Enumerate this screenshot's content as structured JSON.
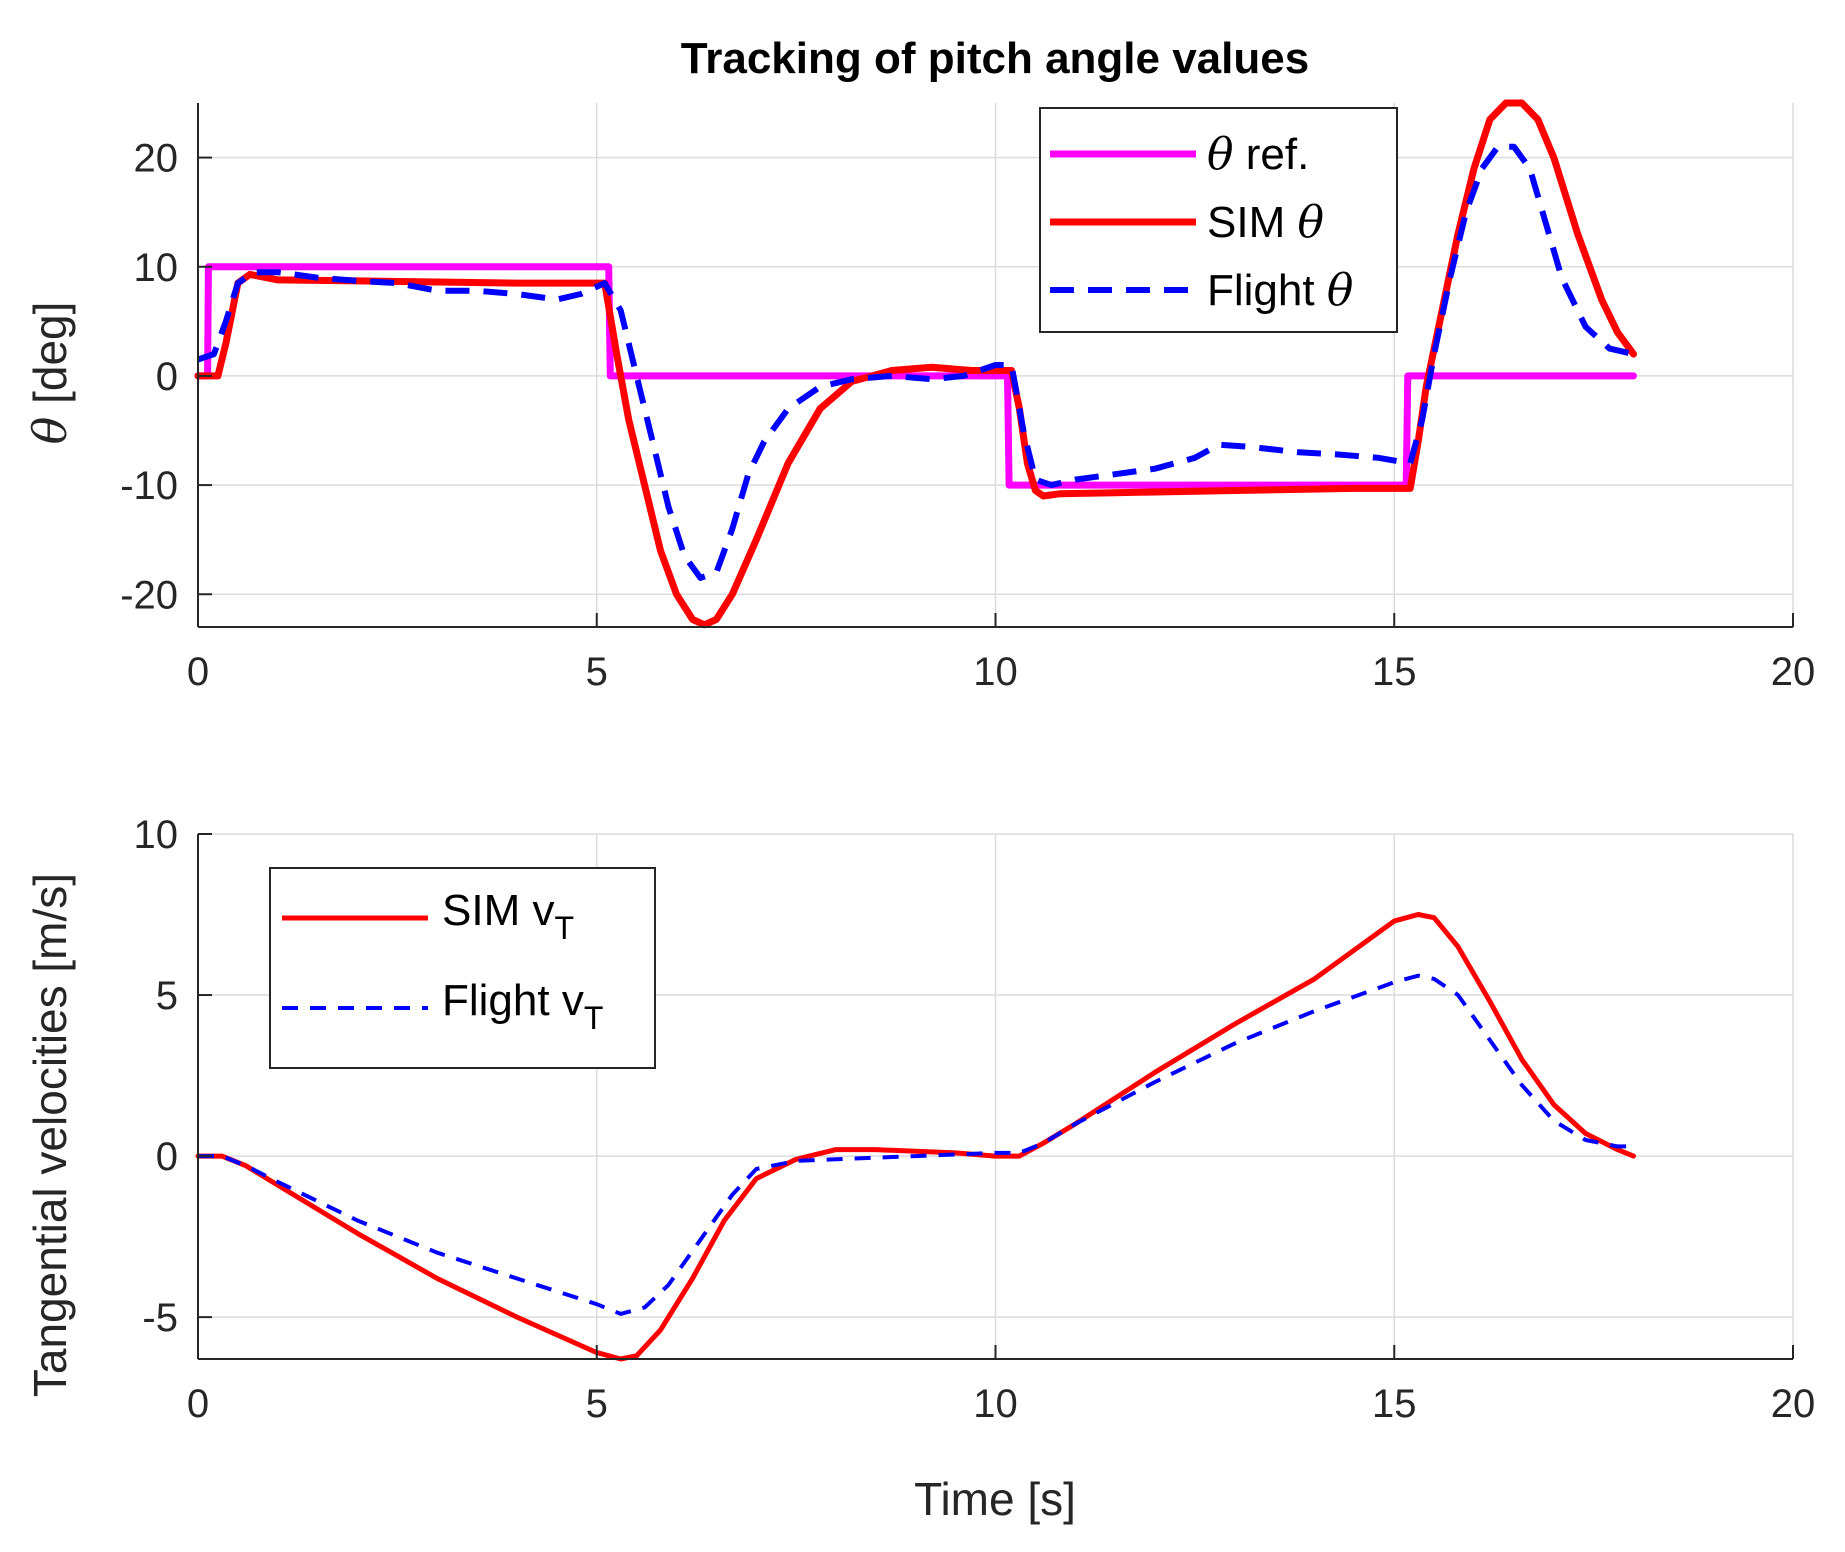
{
  "chart_data": [
    {
      "type": "line",
      "title": "Tracking of pitch angle values",
      "xlabel": "",
      "ylabel": "θ [deg]",
      "ylabel_symbol": "θ",
      "ylabel_unit": "[deg]",
      "xlim": [
        0,
        20
      ],
      "ylim": [
        -23,
        25
      ],
      "xticks": [
        0,
        5,
        10,
        15,
        20
      ],
      "yticks": [
        -20,
        -10,
        0,
        10,
        20
      ],
      "grid": true,
      "legend_position": "top-right",
      "series": [
        {
          "name": "θ ref.",
          "label_symbol": "θ",
          "label_text": "ref.",
          "color": "#ff00ff",
          "style": "solid",
          "x": [
            0,
            0.12,
            0.13,
            5.15,
            5.17,
            10.15,
            10.17,
            15.15,
            15.17,
            18
          ],
          "y": [
            0,
            0,
            10,
            10,
            0,
            0,
            -10,
            -10,
            0,
            0
          ]
        },
        {
          "name": "SIM θ",
          "label_text": "SIM",
          "label_symbol": "θ",
          "color": "#ff0000",
          "style": "solid",
          "x": [
            0,
            0.25,
            0.35,
            0.5,
            0.65,
            1,
            2,
            3,
            4,
            5.1,
            5.25,
            5.4,
            5.6,
            5.8,
            6.0,
            6.2,
            6.35,
            6.5,
            6.7,
            7.0,
            7.4,
            7.8,
            8.2,
            8.7,
            9.2,
            9.7,
            10.2,
            10.3,
            10.4,
            10.5,
            10.6,
            10.8,
            11.5,
            13,
            14.5,
            15.2,
            15.3,
            15.4,
            15.6,
            15.8,
            16.0,
            16.2,
            16.4,
            16.6,
            16.8,
            17.0,
            17.3,
            17.6,
            17.8,
            18.0
          ],
          "y": [
            0,
            0,
            3,
            8.5,
            9.3,
            8.8,
            8.7,
            8.6,
            8.5,
            8.5,
            2,
            -4,
            -10,
            -16,
            -20,
            -22.3,
            -22.8,
            -22.3,
            -20,
            -15,
            -8,
            -3,
            -0.5,
            0.5,
            0.8,
            0.5,
            0.5,
            -3,
            -8,
            -10.5,
            -11,
            -10.8,
            -10.7,
            -10.5,
            -10.3,
            -10.3,
            -6,
            -1,
            6,
            13,
            19,
            23.5,
            25,
            25,
            23.5,
            20,
            13,
            7,
            4,
            2
          ]
        },
        {
          "name": "Flight θ",
          "label_text": "Flight",
          "label_symbol": "θ",
          "color": "#0000ff",
          "style": "dashed",
          "x": [
            0,
            0.2,
            0.35,
            0.5,
            0.7,
            1,
            1.5,
            2,
            2.5,
            3,
            3.5,
            4,
            4.5,
            4.8,
            5.1,
            5.3,
            5.5,
            5.7,
            5.9,
            6.1,
            6.3,
            6.5,
            6.7,
            6.9,
            7.1,
            7.4,
            7.8,
            8.2,
            8.7,
            9.2,
            9.6,
            10.0,
            10.2,
            10.35,
            10.5,
            10.7,
            11,
            11.5,
            12,
            12.5,
            12.8,
            13.2,
            13.8,
            14.3,
            14.8,
            15.2,
            15.35,
            15.5,
            15.7,
            15.9,
            16.1,
            16.3,
            16.5,
            16.7,
            16.9,
            17.1,
            17.4,
            17.7,
            18.0
          ],
          "y": [
            1.5,
            2,
            5,
            8.5,
            9.5,
            9.5,
            9,
            8.7,
            8.5,
            7.8,
            7.8,
            7.5,
            7,
            7.5,
            8.5,
            6,
            0,
            -6,
            -12,
            -16.5,
            -18.5,
            -18,
            -14,
            -9,
            -6,
            -3,
            -1,
            -0.3,
            0,
            -0.3,
            0,
            1,
            1,
            -5,
            -9.5,
            -10,
            -9.5,
            -9,
            -8.5,
            -7.5,
            -6.3,
            -6.5,
            -7,
            -7.2,
            -7.5,
            -8,
            -4,
            2,
            9,
            15,
            19,
            21,
            21,
            19,
            14,
            9,
            4.5,
            2.5,
            2
          ]
        }
      ]
    },
    {
      "type": "line",
      "title": "",
      "xlabel": "Time [s]",
      "ylabel": "Tangential velocities [m/s]",
      "xlim": [
        0,
        20
      ],
      "ylim": [
        -6.3,
        10
      ],
      "xticks": [
        0,
        5,
        10,
        15,
        20
      ],
      "yticks": [
        -5,
        0,
        5,
        10
      ],
      "grid": true,
      "legend_position": "top-left",
      "series": [
        {
          "name": "SIM vT",
          "label_text": "SIM v",
          "label_sub": "T",
          "color": "#ff0000",
          "style": "solid",
          "x": [
            0,
            0.3,
            0.6,
            1,
            2,
            3,
            4,
            5,
            5.3,
            5.5,
            5.8,
            6.2,
            6.6,
            7.0,
            7.5,
            8.0,
            8.5,
            9,
            9.5,
            10,
            10.3,
            10.6,
            11,
            12,
            13,
            14,
            15,
            15.3,
            15.5,
            15.8,
            16.2,
            16.6,
            17,
            17.4,
            17.8,
            18
          ],
          "y": [
            0,
            0,
            -0.3,
            -0.9,
            -2.4,
            -3.8,
            -5,
            -6.1,
            -6.3,
            -6.2,
            -5.4,
            -3.8,
            -2,
            -0.7,
            -0.1,
            0.2,
            0.2,
            0.15,
            0.1,
            0,
            0,
            0.4,
            1,
            2.6,
            4.1,
            5.5,
            7.3,
            7.5,
            7.4,
            6.5,
            4.8,
            3,
            1.6,
            0.7,
            0.2,
            0
          ]
        },
        {
          "name": "Flight vT",
          "label_text": "Flight v",
          "label_sub": "T",
          "color": "#0000ff",
          "style": "dashed",
          "x": [
            0,
            0.3,
            0.6,
            1,
            2,
            3,
            4,
            5,
            5.3,
            5.6,
            5.9,
            6.3,
            6.7,
            7.0,
            7.5,
            8.0,
            8.5,
            9,
            9.5,
            10,
            10.3,
            10.6,
            11,
            12,
            13,
            14,
            15,
            15.3,
            15.5,
            15.8,
            16.2,
            16.6,
            17,
            17.4,
            17.8,
            18
          ],
          "y": [
            0,
            0,
            -0.3,
            -0.8,
            -2,
            -3,
            -3.8,
            -4.6,
            -4.9,
            -4.7,
            -4,
            -2.6,
            -1.2,
            -0.4,
            -0.15,
            -0.1,
            -0.05,
            0,
            0.05,
            0.1,
            0.1,
            0.4,
            1,
            2.3,
            3.5,
            4.5,
            5.4,
            5.6,
            5.5,
            5,
            3.6,
            2.2,
            1.1,
            0.5,
            0.3,
            0.3
          ]
        }
      ]
    }
  ]
}
